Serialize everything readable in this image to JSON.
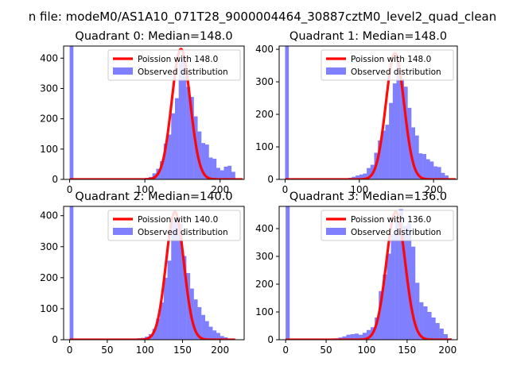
{
  "figure": {
    "suptitle": "n file: modeM0/AS1A10_071T28_9000004464_30887cztM0_level2_quad_clean"
  },
  "chart_data": [
    {
      "type": "bar",
      "title": "Quadrant 0: Median=148.0",
      "xlim": [
        -8,
        232
      ],
      "ylim": [
        0,
        440
      ],
      "xticks": [
        0,
        100,
        200
      ],
      "yticks": [
        0,
        100,
        200,
        300,
        400
      ],
      "bin_width": 5,
      "spike": {
        "x": 0,
        "height": 440
      },
      "histogram": {
        "left_edges": [
          90,
          95,
          100,
          105,
          110,
          115,
          120,
          125,
          130,
          135,
          140,
          145,
          150,
          155,
          160,
          165,
          170,
          175,
          180,
          185,
          190,
          195,
          200,
          205,
          210,
          215,
          220
        ],
        "counts": [
          2,
          3,
          5,
          8,
          20,
          35,
          60,
          118,
          148,
          218,
          268,
          395,
          405,
          305,
          272,
          208,
          158,
          120,
          115,
          72,
          68,
          38,
          30,
          42,
          45,
          25,
          3
        ]
      },
      "fit": {
        "lambda": 148,
        "peak": 430,
        "range": [
          0,
          230
        ]
      },
      "legend": [
        "Poission with 148.0",
        "Observed distribution"
      ],
      "colors": {
        "fit": "#ff0000",
        "hist": "#8080ff"
      }
    },
    {
      "type": "bar",
      "title": "Quadrant 1: Median=148.0",
      "xlim": [
        -8,
        232
      ],
      "ylim": [
        0,
        410
      ],
      "xticks": [
        0,
        100,
        200
      ],
      "yticks": [
        0,
        100,
        200,
        300,
        400
      ],
      "bin_width": 5,
      "spike": {
        "x": 0,
        "height": 410
      },
      "histogram": {
        "left_edges": [
          85,
          90,
          95,
          100,
          105,
          110,
          115,
          120,
          125,
          130,
          135,
          140,
          145,
          150,
          155,
          160,
          165,
          170,
          175,
          180,
          185,
          190,
          195,
          200,
          205,
          210,
          215,
          220
        ],
        "counts": [
          5,
          8,
          12,
          15,
          18,
          35,
          45,
          82,
          120,
          150,
          168,
          235,
          295,
          365,
          310,
          285,
          220,
          160,
          135,
          80,
          78,
          62,
          55,
          40,
          38,
          20,
          12,
          2
        ]
      },
      "fit": {
        "lambda": 148,
        "peak": 388,
        "range": [
          0,
          230
        ]
      },
      "legend": [
        "Poission with 148.0",
        "Observed distribution"
      ],
      "colors": {
        "fit": "#ff0000",
        "hist": "#8080ff"
      }
    },
    {
      "type": "bar",
      "title": "Quadrant 2: Median=140.0",
      "xlim": [
        -8,
        232
      ],
      "ylim": [
        0,
        430
      ],
      "xticks": [
        0,
        50,
        100,
        150,
        200
      ],
      "yticks": [
        0,
        100,
        200,
        300,
        400
      ],
      "bin_width": 5,
      "spike": {
        "x": 0,
        "height": 430
      },
      "histogram": {
        "left_edges": [
          80,
          85,
          90,
          95,
          100,
          105,
          110,
          115,
          120,
          125,
          130,
          135,
          140,
          145,
          150,
          155,
          160,
          165,
          170,
          175,
          180,
          185,
          190,
          195,
          200,
          205,
          210,
          215
        ],
        "counts": [
          2,
          3,
          5,
          6,
          10,
          18,
          35,
          68,
          120,
          200,
          255,
          385,
          395,
          375,
          270,
          215,
          165,
          130,
          105,
          80,
          60,
          42,
          30,
          22,
          12,
          8,
          4,
          2
        ]
      },
      "fit": {
        "lambda": 140,
        "peak": 412,
        "range": [
          0,
          220
        ]
      },
      "legend": [
        "Poission with 140.0",
        "Observed distribution"
      ],
      "colors": {
        "fit": "#ff0000",
        "hist": "#8080ff"
      }
    },
    {
      "type": "bar",
      "title": "Quadrant 3: Median=136.0",
      "xlim": [
        -8,
        212
      ],
      "ylim": [
        0,
        480
      ],
      "xticks": [
        0,
        50,
        100,
        150,
        200
      ],
      "yticks": [
        0,
        100,
        200,
        300,
        400
      ],
      "bin_width": 5,
      "spike": {
        "x": 0,
        "height": 480
      },
      "histogram": {
        "left_edges": [
          60,
          65,
          70,
          75,
          80,
          85,
          90,
          95,
          100,
          105,
          110,
          115,
          120,
          125,
          130,
          135,
          140,
          145,
          150,
          155,
          160,
          165,
          170,
          175,
          180,
          185,
          190,
          195,
          200
        ],
        "counts": [
          5,
          8,
          12,
          18,
          20,
          22,
          18,
          25,
          35,
          45,
          80,
          175,
          235,
          310,
          380,
          430,
          470,
          410,
          420,
          335,
          205,
          135,
          120,
          100,
          80,
          60,
          40,
          20,
          5
        ]
      },
      "fit": {
        "lambda": 136,
        "peak": 460,
        "range": [
          0,
          205
        ]
      },
      "legend": [
        "Poission with 136.0",
        "Observed distribution"
      ],
      "colors": {
        "fit": "#ff0000",
        "hist": "#8080ff"
      }
    }
  ]
}
